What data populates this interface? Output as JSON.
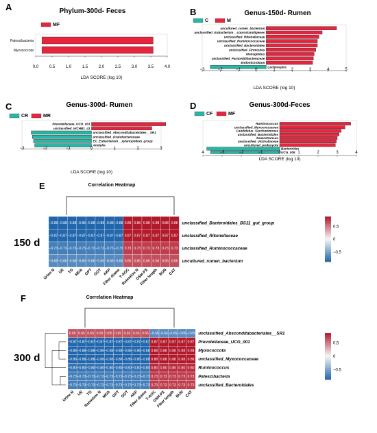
{
  "colors": {
    "red": "#e8253e",
    "teal": "#2bb5a7",
    "hm_pos": "#b2182b",
    "hm_mid": "#f7f7f7",
    "hm_neg": "#2166ac"
  },
  "chart_data": [
    {
      "panel": "A",
      "type": "bar",
      "title": "Phylum-300d- Feces",
      "legend": [
        {
          "name": "MF",
          "color": "red"
        }
      ],
      "xlabel": "LDA SCORE (log 10)",
      "xlim": [
        -0.2,
        4.0
      ],
      "xticks": [
        "0.0",
        "0.5",
        "1.0",
        "1.5",
        "2.0",
        "2.5",
        "3.0",
        "3.5",
        "4.0"
      ],
      "bars": [
        {
          "label": "Patescibacteria",
          "value": 3.55,
          "group": "MF",
          "label_side": "left"
        },
        {
          "label": "Myxococcota",
          "value": 3.55,
          "group": "MF",
          "label_side": "left"
        }
      ]
    },
    {
      "panel": "B",
      "type": "bar",
      "title": "Genus-150d- Rumen",
      "legend": [
        {
          "name": "C",
          "color": "teal"
        },
        {
          "name": "M",
          "color": "red"
        }
      ],
      "xlabel": "LDA SCORE (log 10)",
      "xlim": [
        -4,
        5
      ],
      "xticks": [
        "−3",
        "−2",
        "−1",
        "0",
        "1",
        "2",
        "3",
        "4",
        "5"
      ],
      "bars": [
        {
          "label": "uncultured_rumen_bacterium",
          "value": 4.4,
          "group": "M"
        },
        {
          "label": "unclassified_Eubacterium__coprostanoligenes",
          "value": 3.5,
          "group": "M"
        },
        {
          "label": "unclassified_Rikenellaceae",
          "value": 3.3,
          "group": "M"
        },
        {
          "label": "unclassified_Ruminococcaceae",
          "value": 3.2,
          "group": "M"
        },
        {
          "label": "unclassified_Bacteroidales",
          "value": 3.2,
          "group": "M"
        },
        {
          "label": "unclassified_Firmicutes",
          "value": 3.1,
          "group": "M"
        },
        {
          "label": "Monoglobus",
          "value": 3.0,
          "group": "M"
        },
        {
          "label": "unclassified_Paraceddibacteraceae",
          "value": 2.95,
          "group": "M"
        },
        {
          "label": "Endomicrobium",
          "value": 2.9,
          "group": "M"
        },
        {
          "label": "Lachnospira",
          "value": -3.5,
          "group": "C"
        }
      ]
    },
    {
      "panel": "C",
      "type": "bar",
      "title": "Genus-300d- Rumen",
      "legend": [
        {
          "name": "CR",
          "color": "teal"
        },
        {
          "name": "MR",
          "color": "red"
        }
      ],
      "xlabel": "LDA SCORE (log 10)",
      "xlim": [
        -3,
        3
      ],
      "xticks": [
        "−3",
        "−2",
        "−1",
        "0",
        "1",
        "2",
        "3"
      ],
      "bars": [
        {
          "label": "Prevotellaceae_UCG_001",
          "value": 3.2,
          "group": "MR"
        },
        {
          "label": "unclassified_WCHB1_41",
          "value": 2.6,
          "group": "MR"
        },
        {
          "label": "unclassified_Absconditabacteriales__SR1",
          "value": -2.6,
          "group": "CR"
        },
        {
          "label": "unclassified_Oxalobacteraceae",
          "value": -2.55,
          "group": "CR"
        },
        {
          "label": "EC_Eubacterium__xylanophilum_group",
          "value": -2.5,
          "group": "CR"
        },
        {
          "label": "Anniplia",
          "value": -2.45,
          "group": "CR"
        }
      ]
    },
    {
      "panel": "D",
      "type": "bar",
      "title": "Genus-300d-Feces",
      "legend": [
        {
          "name": "CF",
          "color": "teal"
        },
        {
          "name": "MF",
          "color": "red"
        }
      ],
      "xlabel": "LDA SCORE (log 10)",
      "xlim": [
        -4,
        4
      ],
      "xticks": [
        "4",
        "−3",
        "−2",
        "−1",
        "0",
        "1",
        "2",
        "3",
        "4"
      ],
      "bars": [
        {
          "label": "Ruminococcus",
          "value": 3.7,
          "group": "MF"
        },
        {
          "label": "unclassified_Myxococcaceae",
          "value": 3.4,
          "group": "MF"
        },
        {
          "label": "Candidatus_Saccharimonas",
          "value": 3.2,
          "group": "MF"
        },
        {
          "label": "unclassified_Bacteroidales",
          "value": 3.1,
          "group": "MF"
        },
        {
          "label": "Anaerotruncus",
          "value": 3.0,
          "group": "MF"
        },
        {
          "label": "unclassified_Victivallaceae",
          "value": 2.95,
          "group": "MF"
        },
        {
          "label": "uncultured_prokaryote",
          "value": 2.9,
          "group": "MF"
        },
        {
          "label": "Bacteroides",
          "value": -3.8,
          "group": "CF"
        },
        {
          "label": "UCG_005",
          "value": -3.6,
          "group": "CF"
        }
      ]
    },
    {
      "panel": "E",
      "type": "heatmap",
      "title": "Correlation Heatmap",
      "side_label": "150 d",
      "columns": [
        "Urine N",
        "UE",
        "TG",
        "MDA",
        "GPT",
        "GOT",
        "AKP",
        "Fiber diame",
        "T-AOC",
        "Retention N",
        "GSH-PX",
        "Fiber length",
        "BUN",
        "CAT"
      ],
      "rows": [
        "unclassified_Bacteroidales_BS11_gut_group",
        "unclassified_Rikenellaceae",
        "unclassified_Ruminococcaceae",
        "uncultured_rumen_bacterium"
      ],
      "values": [
        [
          -0.88,
          -0.88,
          -0.88,
          -0.88,
          -0.88,
          -0.88,
          -0.88,
          -0.88,
          0.88,
          0.88,
          0.88,
          0.88,
          0.88,
          0.88
        ],
        [
          -0.87,
          -0.87,
          -0.87,
          -0.87,
          -0.87,
          -0.87,
          -0.87,
          -0.87,
          0.87,
          0.87,
          0.87,
          0.87,
          0.87,
          0.87
        ],
        [
          -0.73,
          -0.73,
          -0.73,
          -0.73,
          -0.73,
          -0.73,
          -0.73,
          -0.73,
          0.73,
          0.73,
          0.73,
          0.73,
          0.73,
          0.73
        ],
        [
          -0.66,
          -0.66,
          -0.66,
          -0.66,
          -0.66,
          -0.66,
          -0.66,
          -0.66,
          0.66,
          0.66,
          0.66,
          0.66,
          0.66,
          0.66
        ]
      ],
      "colorbar_ticks": [
        "0.5",
        "0",
        "−0.5"
      ],
      "zlim": [
        -0.88,
        0.88
      ]
    },
    {
      "panel": "F",
      "type": "heatmap",
      "title": "Correlation Heatmap",
      "side_label": "300 d",
      "columns": [
        "Urine N",
        "UE",
        "TG",
        "Retention N",
        "MDA",
        "GPT",
        "GOT",
        "AKP",
        "Fiber diame",
        "T-AOC",
        "GSH-PX",
        "Fiber length",
        "BUN",
        "CAT"
      ],
      "rows": [
        "unclassified_Absconditabacteriales__SR1",
        "Prevotellaceae_UCG_001",
        "Myxococcota",
        "unclassified_Myxococcaceae",
        "Ruminococcus",
        "Patescibacteria",
        "unclassified_Bacteroidales"
      ],
      "values": [
        [
          0.65,
          0.65,
          0.65,
          0.65,
          0.65,
          0.65,
          0.65,
          0.65,
          0.65,
          -0.65,
          -0.65,
          -0.65,
          -0.65,
          -0.65
        ],
        [
          -0.87,
          -0.87,
          -0.87,
          -0.87,
          -0.87,
          -0.87,
          -0.87,
          -0.87,
          -0.87,
          0.87,
          0.87,
          0.87,
          0.87,
          0.87
        ],
        [
          -0.88,
          -0.88,
          -0.88,
          -0.88,
          -0.88,
          -0.88,
          -0.88,
          -0.88,
          -0.88,
          0.88,
          0.88,
          0.88,
          0.88,
          0.88
        ],
        [
          -0.88,
          -0.88,
          -0.88,
          -0.88,
          -0.88,
          -0.88,
          -0.88,
          -0.88,
          -0.88,
          0.88,
          0.88,
          0.88,
          0.88,
          0.88
        ],
        [
          -0.8,
          -0.8,
          -0.8,
          -0.8,
          -0.8,
          -0.8,
          -0.8,
          -0.8,
          -0.8,
          0.8,
          0.8,
          0.8,
          0.8,
          0.8
        ],
        [
          -0.73,
          -0.73,
          -0.73,
          -0.73,
          -0.73,
          -0.73,
          -0.73,
          -0.73,
          -0.73,
          0.73,
          0.73,
          0.73,
          0.73,
          0.73
        ],
        [
          -0.73,
          -0.73,
          -0.73,
          -0.73,
          -0.73,
          -0.73,
          -0.73,
          -0.73,
          -0.73,
          0.73,
          0.73,
          0.73,
          0.73,
          0.73
        ]
      ],
      "colorbar_ticks": [
        "0.5",
        "0",
        "−0.5"
      ],
      "zlim": [
        -0.88,
        0.88
      ]
    }
  ]
}
